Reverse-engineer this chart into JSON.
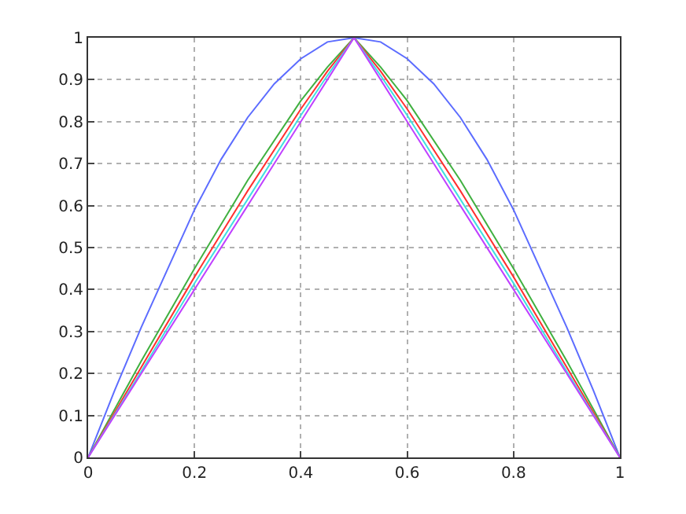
{
  "chart_data": {
    "type": "line",
    "x": [
      0,
      0.1,
      0.2,
      0.3,
      0.4,
      0.45,
      0.5,
      0.55,
      0.6,
      0.7,
      0.8,
      0.9,
      1
    ],
    "series": [
      {
        "color": "#5c6cff",
        "x": [
          0,
          0.05,
          0.1,
          0.15,
          0.2,
          0.25,
          0.3,
          0.35,
          0.4,
          0.45,
          0.5,
          0.55,
          0.6,
          0.65,
          0.7,
          0.75,
          0.8,
          0.85,
          0.9,
          0.95,
          1
        ],
        "values": [
          0,
          0.16,
          0.31,
          0.45,
          0.59,
          0.71,
          0.81,
          0.89,
          0.95,
          0.99,
          1,
          0.99,
          0.95,
          0.89,
          0.81,
          0.71,
          0.59,
          0.45,
          0.31,
          0.16,
          0
        ]
      },
      {
        "color": "#40b040",
        "values": [
          0,
          0.23,
          0.45,
          0.66,
          0.85,
          0.93,
          1,
          0.93,
          0.85,
          0.66,
          0.45,
          0.23,
          0
        ]
      },
      {
        "color": "#ff3030",
        "values": [
          0,
          0.215,
          0.43,
          0.635,
          0.83,
          0.92,
          1,
          0.92,
          0.83,
          0.635,
          0.43,
          0.215,
          0
        ]
      },
      {
        "color": "#40e0e0",
        "values": [
          0,
          0.205,
          0.415,
          0.615,
          0.815,
          0.91,
          1,
          0.91,
          0.815,
          0.615,
          0.415,
          0.205,
          0
        ]
      },
      {
        "color": "#c040ff",
        "values": [
          0,
          0.2,
          0.4,
          0.6,
          0.8,
          0.9,
          1,
          0.9,
          0.8,
          0.6,
          0.4,
          0.2,
          0
        ]
      }
    ],
    "xlim": [
      0,
      1
    ],
    "ylim": [
      0,
      1
    ],
    "xticks": [
      0,
      0.2,
      0.4,
      0.6,
      0.8,
      1
    ],
    "yticks": [
      0,
      0.1,
      0.2,
      0.3,
      0.4,
      0.5,
      0.6,
      0.7,
      0.8,
      0.9,
      1
    ],
    "grid": true,
    "line_style": "solid"
  }
}
